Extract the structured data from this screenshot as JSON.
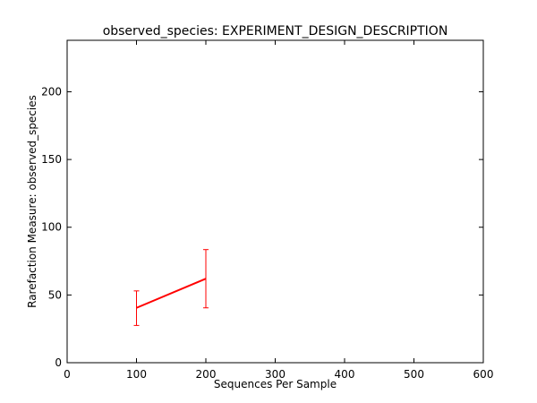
{
  "chart_data": {
    "type": "line",
    "title": "observed_species: EXPERIMENT_DESIGN_DESCRIPTION",
    "xlabel": "Sequences Per Sample",
    "ylabel": "Rarefaction Measure: observed_species",
    "xlim": [
      0,
      600
    ],
    "ylim": [
      0,
      238
    ],
    "xticks": [
      0,
      100,
      200,
      300,
      400,
      500,
      600
    ],
    "yticks": [
      0,
      50,
      100,
      150,
      200
    ],
    "grid": false,
    "series": [
      {
        "color": "#ff0000",
        "x": [
          100,
          200
        ],
        "y": [
          40.5,
          62.0
        ],
        "yerr_low": [
          27.5,
          40.5
        ],
        "yerr_high": [
          53.0,
          83.5
        ]
      }
    ]
  }
}
